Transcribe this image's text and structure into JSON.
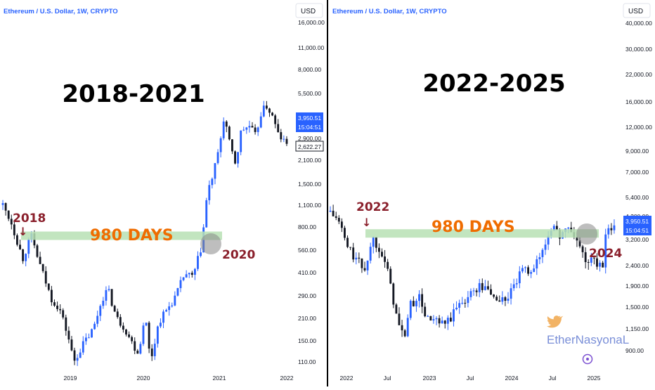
{
  "colors": {
    "up": "#2962ff",
    "down": "#131722",
    "band": "#b7e1b4",
    "orange": "#ef6c00",
    "maroon": "#8a1f2b",
    "badge_blue": "#2962ff",
    "divider": "#000000"
  },
  "chart_data": [
    {
      "type": "candlestick",
      "symbol_title": "Ethereum / U.S. Dollar, 1W, CRYPTO",
      "currency": "USD",
      "scale": "log",
      "big_title": "2018-2021",
      "x_tick_labels": [
        "2019",
        "2020",
        "2021",
        "2022"
      ],
      "y_tick_labels": [
        "16,000.00",
        "11,000.00",
        "8,000.00",
        "5,500.00",
        "2,900.00",
        "2,100.00",
        "1,500.00",
        "1,100.00",
        "800.00",
        "560.00",
        "410.00",
        "290.00",
        "210.00",
        "150.00",
        "110.00"
      ],
      "y_range": [
        100,
        17500
      ],
      "x_range": [
        "2018-01",
        "2022-03"
      ],
      "price_badge": {
        "value": "3,950.51",
        "countdown": "15:04:51"
      },
      "last_price_box": "2,622.27",
      "annotations": {
        "start_label": "2018",
        "end_label": "2020",
        "band_label": "980 DAYS",
        "start_arrow": "↓"
      },
      "band_level": 700,
      "price_path": [
        {
          "t": 0.0,
          "p": 1100
        },
        {
          "t": 0.03,
          "p": 850
        },
        {
          "t": 0.07,
          "p": 500
        },
        {
          "t": 0.1,
          "p": 700
        },
        {
          "t": 0.13,
          "p": 460
        },
        {
          "t": 0.17,
          "p": 280
        },
        {
          "t": 0.2,
          "p": 240
        },
        {
          "t": 0.23,
          "p": 160
        },
        {
          "t": 0.25,
          "p": 110
        },
        {
          "t": 0.28,
          "p": 140
        },
        {
          "t": 0.32,
          "p": 180
        },
        {
          "t": 0.35,
          "p": 280
        },
        {
          "t": 0.37,
          "p": 320
        },
        {
          "t": 0.4,
          "p": 210
        },
        {
          "t": 0.43,
          "p": 180
        },
        {
          "t": 0.46,
          "p": 140
        },
        {
          "t": 0.48,
          "p": 125
        },
        {
          "t": 0.5,
          "p": 230
        },
        {
          "t": 0.52,
          "p": 110
        },
        {
          "t": 0.55,
          "p": 200
        },
        {
          "t": 0.58,
          "p": 240
        },
        {
          "t": 0.61,
          "p": 290
        },
        {
          "t": 0.64,
          "p": 400
        },
        {
          "t": 0.67,
          "p": 380
        },
        {
          "t": 0.7,
          "p": 600
        },
        {
          "t": 0.72,
          "p": 1300
        },
        {
          "t": 0.74,
          "p": 1700
        },
        {
          "t": 0.76,
          "p": 2400
        },
        {
          "t": 0.78,
          "p": 4100
        },
        {
          "t": 0.8,
          "p": 2600
        },
        {
          "t": 0.82,
          "p": 2000
        },
        {
          "t": 0.84,
          "p": 3300
        },
        {
          "t": 0.87,
          "p": 3500
        },
        {
          "t": 0.89,
          "p": 3000
        },
        {
          "t": 0.91,
          "p": 4300
        },
        {
          "t": 0.93,
          "p": 4700
        },
        {
          "t": 0.95,
          "p": 4000
        },
        {
          "t": 0.97,
          "p": 3100
        },
        {
          "t": 1.0,
          "p": 2650
        }
      ]
    },
    {
      "type": "candlestick",
      "symbol_title": "Ethereum / U.S. Dollar, 1W, CRYPTO",
      "currency": "USD",
      "scale": "log",
      "big_title": "2022-2025",
      "x_tick_labels": [
        "2022",
        "Jul",
        "2023",
        "Jul",
        "2024",
        "Jul",
        "2025"
      ],
      "y_tick_labels": [
        "40,000.00",
        "30,000.00",
        "22,000.00",
        "16,000.00",
        "12,000.00",
        "9,000.00",
        "7,000.00",
        "5,400.00",
        "4,200.00",
        "3,200.00",
        "2,400.00",
        "1,900.00",
        "1,500.00",
        "1,150.00",
        "900.00"
      ],
      "y_range": [
        800,
        45000
      ],
      "x_range": [
        "2021-11",
        "2025-01"
      ],
      "price_badge": {
        "value": "3,950.51",
        "countdown": "15:04:51"
      },
      "annotations": {
        "start_label": "2022",
        "end_label": "2024",
        "band_label": "980 DAYS",
        "start_arrow": "↓"
      },
      "band_level": 3500,
      "price_path": [
        {
          "t": 0.0,
          "p": 4500
        },
        {
          "t": 0.03,
          "p": 4000
        },
        {
          "t": 0.06,
          "p": 3000
        },
        {
          "t": 0.09,
          "p": 2600
        },
        {
          "t": 0.12,
          "p": 2300
        },
        {
          "t": 0.15,
          "p": 3300
        },
        {
          "t": 0.18,
          "p": 2900
        },
        {
          "t": 0.21,
          "p": 2000
        },
        {
          "t": 0.24,
          "p": 1200
        },
        {
          "t": 0.26,
          "p": 1050
        },
        {
          "t": 0.28,
          "p": 1500
        },
        {
          "t": 0.31,
          "p": 1700
        },
        {
          "t": 0.34,
          "p": 1300
        },
        {
          "t": 0.37,
          "p": 1250
        },
        {
          "t": 0.4,
          "p": 1200
        },
        {
          "t": 0.43,
          "p": 1350
        },
        {
          "t": 0.46,
          "p": 1600
        },
        {
          "t": 0.49,
          "p": 1700
        },
        {
          "t": 0.52,
          "p": 1900
        },
        {
          "t": 0.55,
          "p": 1850
        },
        {
          "t": 0.58,
          "p": 1650
        },
        {
          "t": 0.61,
          "p": 1600
        },
        {
          "t": 0.64,
          "p": 1800
        },
        {
          "t": 0.67,
          "p": 2200
        },
        {
          "t": 0.7,
          "p": 2300
        },
        {
          "t": 0.73,
          "p": 2500
        },
        {
          "t": 0.76,
          "p": 3200
        },
        {
          "t": 0.78,
          "p": 3900
        },
        {
          "t": 0.8,
          "p": 3400
        },
        {
          "t": 0.83,
          "p": 3700
        },
        {
          "t": 0.86,
          "p": 3400
        },
        {
          "t": 0.88,
          "p": 3000
        },
        {
          "t": 0.9,
          "p": 2500
        },
        {
          "t": 0.92,
          "p": 2600
        },
        {
          "t": 0.94,
          "p": 2400
        },
        {
          "t": 0.96,
          "p": 2500
        },
        {
          "t": 0.97,
          "p": 3300
        },
        {
          "t": 0.985,
          "p": 3700
        },
        {
          "t": 1.0,
          "p": 3950
        }
      ]
    }
  ],
  "watermark": {
    "bird_icon": "twitter-bird-icon",
    "text": "EtherNasyonaL"
  },
  "target_icon": "target-icon"
}
